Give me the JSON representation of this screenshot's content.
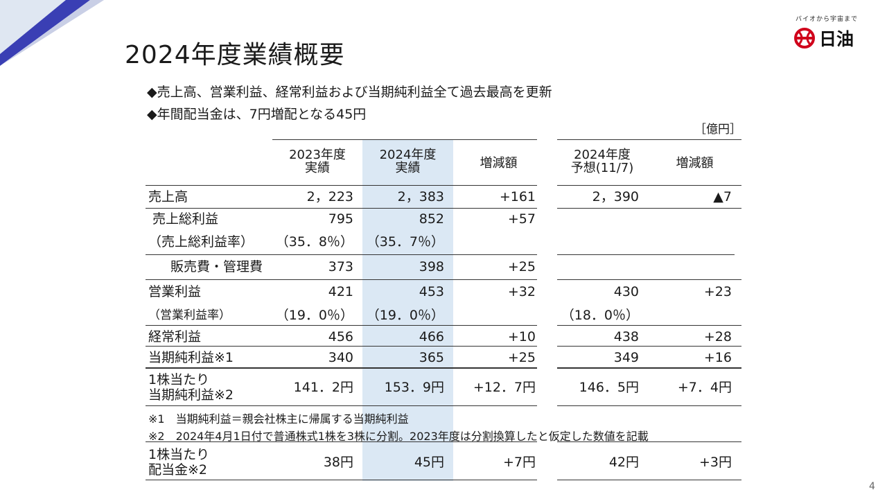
{
  "title": "2024年度業績概要",
  "logo": {
    "tagline": "バイオから宇宙まで",
    "name": "日油"
  },
  "bullets": [
    "◆売上高、営業利益、経常利益および当期純利益全て過去最高を更新",
    "◆年間配当金は、7円増配となる45円"
  ],
  "unit": "［億円］",
  "headers": {
    "fy2023": [
      "2023年度",
      "実績"
    ],
    "fy2024": [
      "2024年度",
      "実績"
    ],
    "change": "増減額",
    "forecast": [
      "2024年度",
      "予想(11/7)"
    ],
    "forecast_change": "増減額"
  },
  "rows": [
    {
      "label": "売上高",
      "v2023": "2，223",
      "v2024": "2，383",
      "diff": "+161",
      "forecast": "2，390",
      "fdiff": "▲7"
    },
    {
      "label": "売上総利益",
      "v2023": "795",
      "v2024": "852",
      "diff": "+57",
      "forecast": "",
      "fdiff": ""
    },
    {
      "label": "（売上総利益率）",
      "v2023": "（35．8％）",
      "v2024": "（35．7％）",
      "diff": "",
      "forecast": "",
      "fdiff": ""
    },
    {
      "label": "販売費・管理費",
      "v2023": "373",
      "v2024": "398",
      "diff": "+25",
      "forecast": "",
      "fdiff": ""
    },
    {
      "label": "営業利益",
      "v2023": "421",
      "v2024": "453",
      "diff": "+32",
      "forecast": "430",
      "fdiff": "+23"
    },
    {
      "label": "（営業利益率）",
      "v2023": "（19．0％）",
      "v2024": "（19．0％）",
      "diff": "",
      "forecast": "（18．0％）",
      "fdiff": ""
    },
    {
      "label": "経常利益",
      "v2023": "456",
      "v2024": "466",
      "diff": "+10",
      "forecast": "438",
      "fdiff": "+28"
    },
    {
      "label": "当期純利益※1",
      "v2023": "340",
      "v2024": "365",
      "diff": "+25",
      "forecast": "349",
      "fdiff": "+16"
    },
    {
      "label": [
        "1株当たり",
        "当期純利益※2"
      ],
      "v2023": "141．2円",
      "v2024": "153．9円",
      "diff": "+12．7円",
      "forecast": "146．5円",
      "fdiff": "+7．4円"
    }
  ],
  "notes": [
    "※1　当期純利益＝親会社株主に帰属する当期純利益",
    "※2　2024年4月1日付で普通株式1株を3株に分割。2023年度は分割換算したと仮定した数値を記載"
  ],
  "dividend": {
    "label": [
      "1株当たり",
      "配当金※2"
    ],
    "v2023": "38円",
    "v2024": "45円",
    "diff": "+7円",
    "forecast": "42円",
    "fdiff": "+3円"
  },
  "page_number": "4"
}
